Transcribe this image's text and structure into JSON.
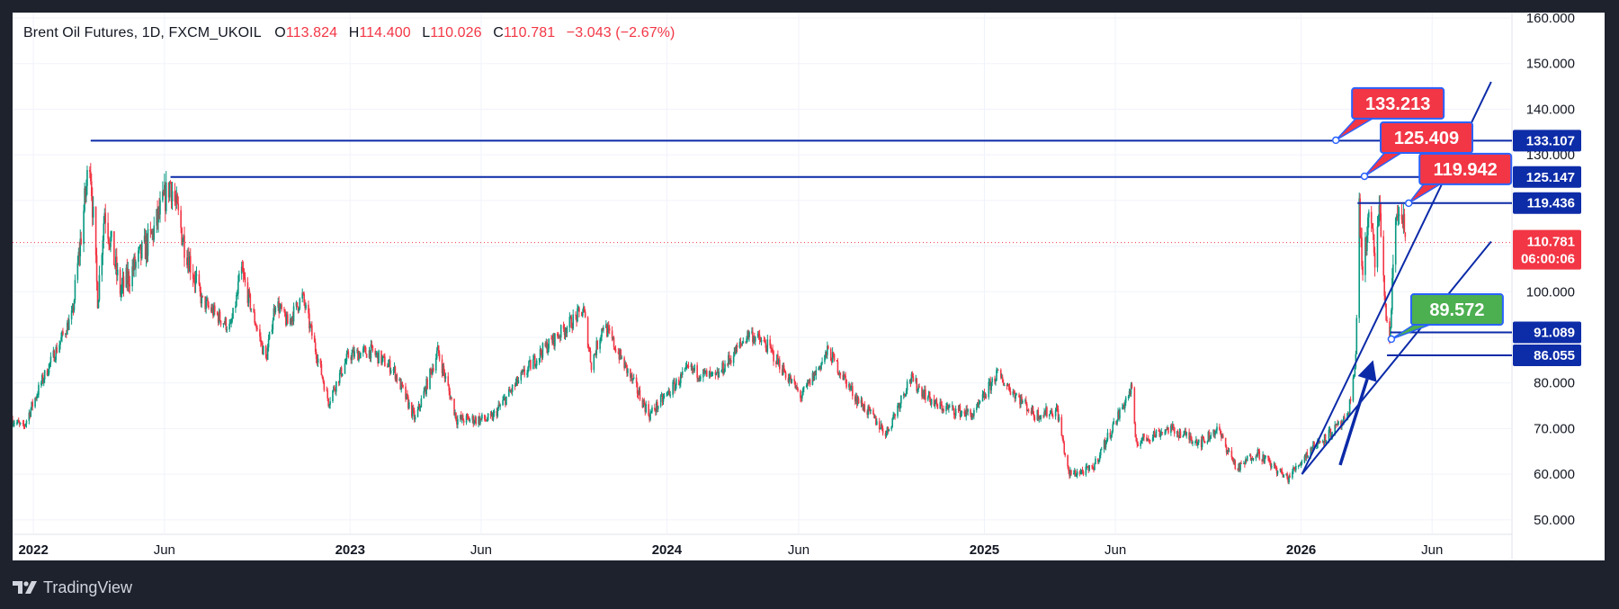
{
  "header": {
    "symbol": "Brent Oil Futures, 1D, FXCM_UKOIL",
    "o_label": "O",
    "o_value": "113.824",
    "h_label": "H",
    "h_value": "114.400",
    "l_label": "L",
    "l_value": "110.026",
    "c_label": "C",
    "c_value": "110.781",
    "change": "−3.043 (−2.67%)"
  },
  "footer": {
    "brand": "TradingView"
  },
  "price_axis": {
    "ticks": [
      "50.000",
      "60.000",
      "70.000",
      "80.000",
      "90.000",
      "100.000",
      "110.000",
      "120.000",
      "130.000",
      "140.000",
      "150.000",
      "160.000"
    ],
    "tick_values": [
      50,
      60,
      70,
      80,
      90,
      100,
      110,
      120,
      130,
      140,
      150,
      160
    ]
  },
  "time_axis": {
    "labels": [
      {
        "text": "2022",
        "year": true
      },
      {
        "text": "Jun",
        "year": false
      },
      {
        "text": "2023",
        "year": true
      },
      {
        "text": "Jun",
        "year": false
      },
      {
        "text": "2024",
        "year": true
      },
      {
        "text": "Jun",
        "year": false
      },
      {
        "text": "2025",
        "year": true
      },
      {
        "text": "Jun",
        "year": false
      },
      {
        "text": "2026",
        "year": true
      },
      {
        "text": "Jun",
        "year": false
      }
    ],
    "dates": [
      "2022-01-01",
      "2022-06-01",
      "2023-01-01",
      "2023-06-01",
      "2024-01-01",
      "2024-06-01",
      "2025-01-01",
      "2025-06-01",
      "2026-01-01",
      "2026-06-01"
    ]
  },
  "colors": {
    "up": "#089981",
    "down": "#f23645",
    "line": "#0b2aa8",
    "callout_red": "#f23645",
    "callout_green": "#4caf50",
    "callout_border": "#2962ff",
    "axis_tag": "#0d2ca8"
  },
  "chart_data": {
    "type": "candlestick",
    "title": "Brent Oil Futures, 1D, FXCM_UKOIL",
    "ylim": [
      48,
      160
    ],
    "xlim": [
      "2021-12-08",
      "2026-09-01"
    ],
    "last_close": 110.781,
    "last_close_tag": "110.781",
    "countdown": "06:00:06",
    "price_path": [
      [
        "2021-12-08",
        72
      ],
      [
        "2021-12-20",
        70
      ],
      [
        "2022-01-10",
        80
      ],
      [
        "2022-02-15",
        95
      ],
      [
        "2022-03-07",
        130
      ],
      [
        "2022-03-16",
        98
      ],
      [
        "2022-03-24",
        118
      ],
      [
        "2022-04-11",
        100
      ],
      [
        "2022-05-17",
        112
      ],
      [
        "2022-06-08",
        124
      ],
      [
        "2022-06-22",
        112
      ],
      [
        "2022-07-14",
        98
      ],
      [
        "2022-08-16",
        92
      ],
      [
        "2022-08-29",
        104
      ],
      [
        "2022-09-26",
        85
      ],
      [
        "2022-10-07",
        98
      ],
      [
        "2022-10-21",
        93
      ],
      [
        "2022-11-07",
        99
      ],
      [
        "2022-12-07",
        76
      ],
      [
        "2022-12-30",
        86
      ],
      [
        "2023-01-25",
        87
      ],
      [
        "2023-02-20",
        83
      ],
      [
        "2023-03-17",
        72
      ],
      [
        "2023-04-12",
        87
      ],
      [
        "2023-05-04",
        72
      ],
      [
        "2023-06-12",
        72
      ],
      [
        "2023-07-12",
        80
      ],
      [
        "2023-08-10",
        87
      ],
      [
        "2023-09-27",
        96
      ],
      [
        "2023-10-06",
        84
      ],
      [
        "2023-10-20",
        93
      ],
      [
        "2023-12-12",
        73
      ],
      [
        "2024-01-26",
        83
      ],
      [
        "2024-02-26",
        81
      ],
      [
        "2024-04-05",
        91
      ],
      [
        "2024-04-26",
        88
      ],
      [
        "2024-06-04",
        77
      ],
      [
        "2024-07-05",
        87
      ],
      [
        "2024-08-05",
        77
      ],
      [
        "2024-09-10",
        69
      ],
      [
        "2024-10-07",
        81
      ],
      [
        "2024-11-07",
        75
      ],
      [
        "2024-12-20",
        73
      ],
      [
        "2025-01-15",
        82
      ],
      [
        "2025-02-28",
        73
      ],
      [
        "2025-03-26",
        74
      ],
      [
        "2025-04-08",
        60
      ],
      [
        "2025-05-05",
        61
      ],
      [
        "2025-06-20",
        79
      ],
      [
        "2025-06-24",
        67
      ],
      [
        "2025-08-01",
        70
      ],
      [
        "2025-09-09",
        67
      ],
      [
        "2025-09-26",
        70
      ],
      [
        "2025-10-20",
        61
      ],
      [
        "2025-11-10",
        65
      ],
      [
        "2025-12-16",
        59
      ],
      [
        "2026-01-14",
        66
      ],
      [
        "2026-02-10",
        70
      ],
      [
        "2026-02-24",
        72
      ],
      [
        "2026-03-05",
        86
      ],
      [
        "2026-03-09",
        118
      ],
      [
        "2026-03-13",
        104
      ],
      [
        "2026-03-20",
        116
      ],
      [
        "2026-03-27",
        108
      ],
      [
        "2026-04-02",
        118
      ],
      [
        "2026-04-08",
        96
      ],
      [
        "2026-04-13",
        89
      ],
      [
        "2026-04-20",
        116
      ],
      [
        "2026-04-27",
        119
      ],
      [
        "2026-05-01",
        110.781
      ]
    ],
    "horizontal_levels": [
      {
        "from": "2022-03-08",
        "value": 133.107,
        "tag": "133.107"
      },
      {
        "from": "2022-06-08",
        "value": 125.147,
        "tag": "125.147"
      },
      {
        "from": "2026-03-07",
        "value": 119.436,
        "tag": "119.436"
      },
      {
        "from": "2026-04-14",
        "value": 91.089,
        "tag": "91.089"
      },
      {
        "from": "2026-04-10",
        "value": 86.055,
        "tag": "86.055"
      }
    ],
    "trend_lines": [
      {
        "x1": "2026-01-02",
        "y1": 60,
        "x2": "2026-08-08",
        "y2": 146
      },
      {
        "x1": "2026-01-02",
        "y1": 60,
        "x2": "2026-08-08",
        "y2": 111
      }
    ],
    "callouts": [
      {
        "text": "133.213",
        "color": "red",
        "anchor_date": "2026-02-10",
        "anchor_value": 133.2
      },
      {
        "text": "125.409",
        "color": "red",
        "anchor_date": "2026-03-15",
        "anchor_value": 125.3
      },
      {
        "text": "119.942",
        "color": "red",
        "anchor_date": "2026-05-05",
        "anchor_value": 119.4
      },
      {
        "text": "89.572",
        "color": "green",
        "anchor_date": "2026-04-15",
        "anchor_value": 89.6
      }
    ],
    "arrow": {
      "x1": "2026-02-15",
      "y1": 62,
      "x2": "2026-03-25",
      "y2": 85
    }
  }
}
